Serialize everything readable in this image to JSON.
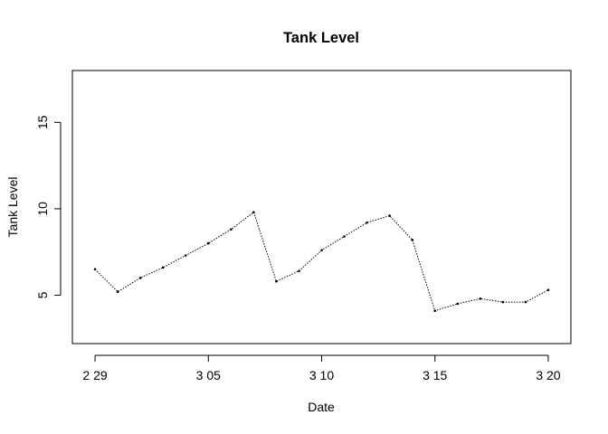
{
  "chart_data": {
    "type": "line",
    "title": "Tank Level",
    "xlabel": "Date",
    "ylabel": "Tank Level",
    "x_ticks": [
      {
        "value": "2016-02-29",
        "label": "2 29"
      },
      {
        "value": "2016-03-05",
        "label": "3 05"
      },
      {
        "value": "2016-03-10",
        "label": "3 10"
      },
      {
        "value": "2016-03-15",
        "label": "3 15"
      },
      {
        "value": "2016-03-20",
        "label": "3 20"
      }
    ],
    "y_ticks": [
      5,
      10,
      15
    ],
    "xlim": [
      "2016-02-28",
      "2016-03-21"
    ],
    "ylim": [
      2.2,
      18
    ],
    "line_style": "dotted",
    "line_color": "#000000",
    "grid": false,
    "series": [
      {
        "x": [
          "2016-02-29",
          "2016-03-01",
          "2016-03-02",
          "2016-03-03",
          "2016-03-04",
          "2016-03-05",
          "2016-03-06",
          "2016-03-07",
          "2016-03-08",
          "2016-03-09",
          "2016-03-10",
          "2016-03-11",
          "2016-03-12",
          "2016-03-13",
          "2016-03-14",
          "2016-03-15",
          "2016-03-16",
          "2016-03-17",
          "2016-03-18",
          "2016-03-19",
          "2016-03-20"
        ],
        "y": [
          6.5,
          5.2,
          6.0,
          6.6,
          7.3,
          8.0,
          8.8,
          9.8,
          5.8,
          6.4,
          7.6,
          8.4,
          9.2,
          9.6,
          8.2,
          4.1,
          4.5,
          4.8,
          4.6,
          4.6,
          5.3
        ]
      }
    ]
  }
}
